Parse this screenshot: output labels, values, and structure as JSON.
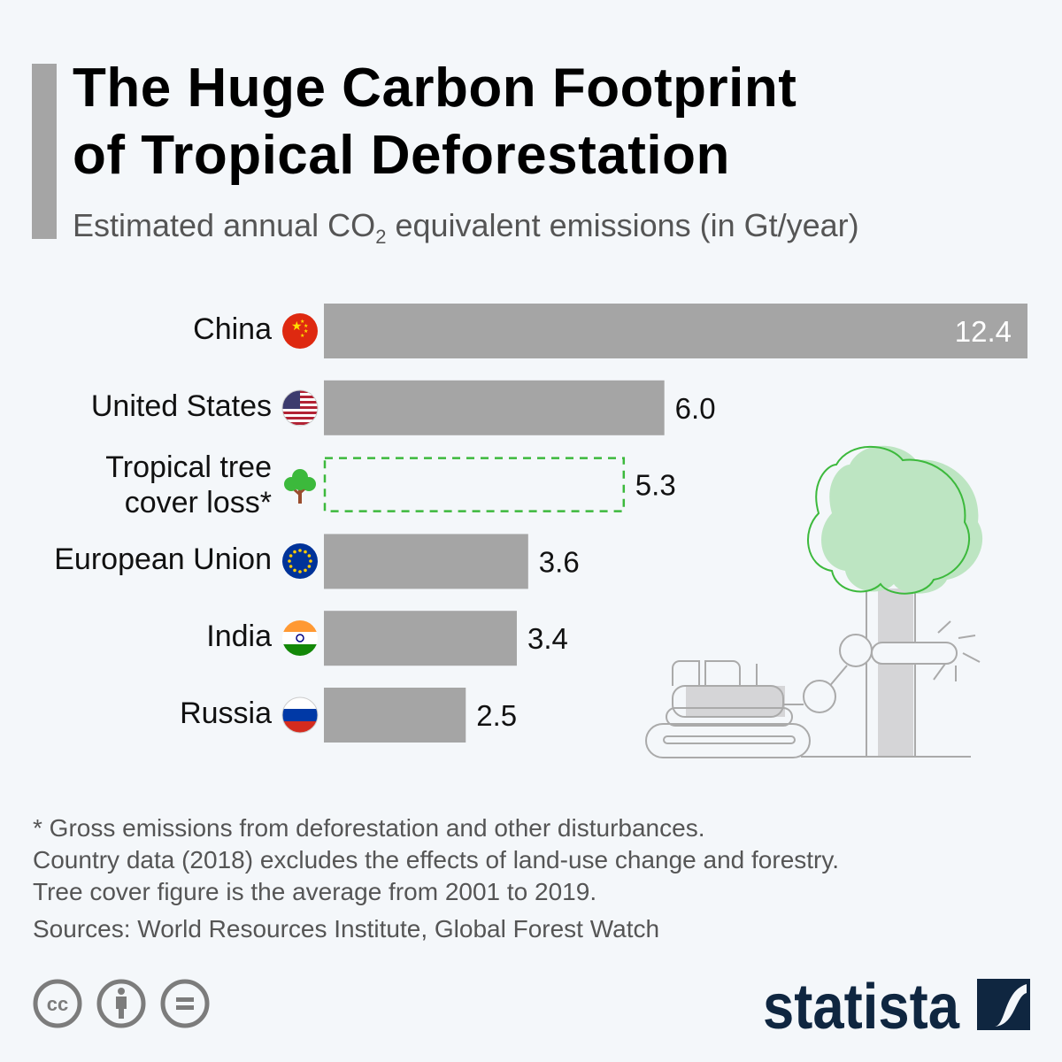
{
  "header": {
    "title_line1": "The Huge Carbon Footprint",
    "title_line2": "of Tropical Deforestation",
    "subtitle_pre": "Estimated annual CO",
    "subtitle_sub": "2",
    "subtitle_post": " equivalent emissions (in Gt/year)"
  },
  "chart_data": {
    "type": "bar",
    "orientation": "horizontal",
    "title": "The Huge Carbon Footprint of Tropical Deforestation",
    "subtitle": "Estimated annual CO2 equivalent emissions (in Gt/year)",
    "categories": [
      "China",
      "United States",
      "Tropical tree cover loss*",
      "European Union",
      "India",
      "Russia"
    ],
    "values": [
      12.4,
      6.0,
      5.3,
      3.6,
      3.4,
      2.5
    ],
    "value_labels": [
      "12.4",
      "6.0",
      "5.3",
      "3.6",
      "3.4",
      "2.5"
    ],
    "icons": [
      "china-flag-icon",
      "us-flag-icon",
      "tree-icon",
      "eu-flag-icon",
      "india-flag-icon",
      "russia-flag-icon"
    ],
    "highlight": {
      "category": "Tropical tree cover loss*",
      "style": "dashed-outline",
      "color": "#3cb93c"
    },
    "bar_color": "#a5a5a5",
    "xlim": [
      0,
      12.4
    ],
    "grid": false,
    "legend": "none"
  },
  "footer": {
    "notes": [
      "* Gross emissions from deforestation and other disturbances.",
      "Country data (2018) excludes the effects of land-use change and forestry.",
      "Tree cover figure is the average from 2001 to 2019."
    ],
    "sources": "Sources: World Resources Institute, Global Forest Watch",
    "license_icons": [
      "creative-commons-icon",
      "attribution-icon",
      "no-derivatives-icon"
    ],
    "brand": "statista",
    "brand_color": "#0f2640"
  }
}
